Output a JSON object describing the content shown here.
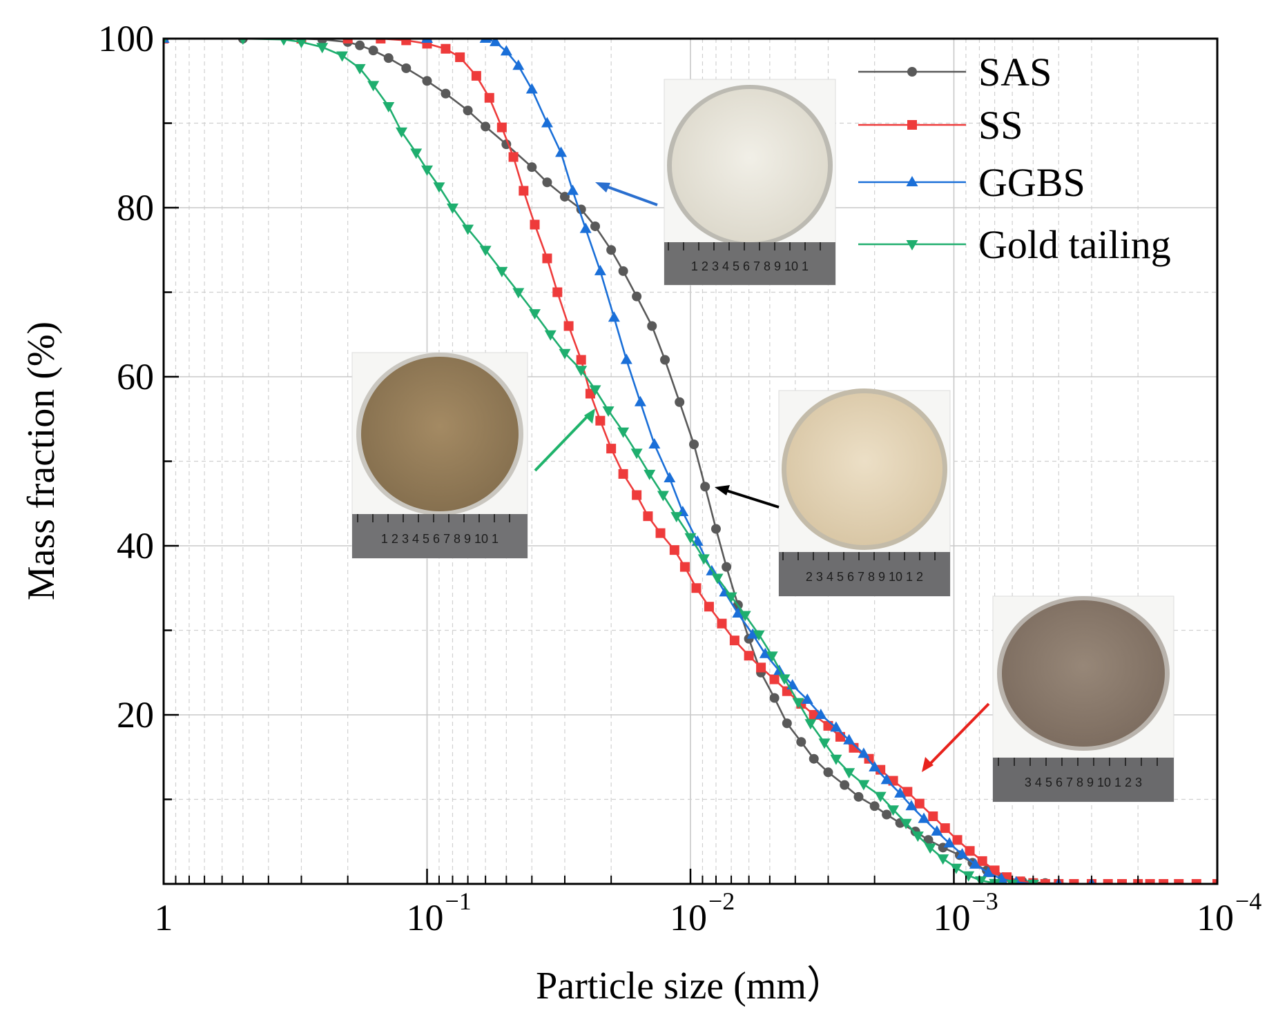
{
  "chart_data": {
    "type": "line",
    "title": "",
    "xlabel": "Particle size (mm）",
    "ylabel": "Mass fraction (%)",
    "x_scale": "log",
    "x_reversed": true,
    "xlim": [
      1,
      0.0001
    ],
    "ylim": [
      0,
      100
    ],
    "y_ticks": [
      20,
      40,
      60,
      80,
      100
    ],
    "x_tick_labels": [
      {
        "value": 1,
        "base": "1",
        "exp": ""
      },
      {
        "value": 0.1,
        "base": "10",
        "exp": "−1"
      },
      {
        "value": 0.01,
        "base": "10",
        "exp": "−2"
      },
      {
        "value": 0.001,
        "base": "10",
        "exp": "−3"
      },
      {
        "value": 0.0001,
        "base": "10",
        "exp": "−4"
      }
    ],
    "grid": true,
    "legend_position": "top-right",
    "series": [
      {
        "name": "SAS",
        "color": "#595959",
        "marker": "circle",
        "points": [
          [
            1,
            100
          ],
          [
            0.5,
            100
          ],
          [
            0.3,
            100
          ],
          [
            0.25,
            99.9
          ],
          [
            0.2,
            99.6
          ],
          [
            0.18,
            99.2
          ],
          [
            0.16,
            98.6
          ],
          [
            0.14,
            97.7
          ],
          [
            0.12,
            96.5
          ],
          [
            0.1,
            95
          ],
          [
            0.085,
            93.5
          ],
          [
            0.07,
            91.5
          ],
          [
            0.06,
            89.6
          ],
          [
            0.05,
            87.5
          ],
          [
            0.04,
            84.8
          ],
          [
            0.035,
            83
          ],
          [
            0.03,
            81.3
          ],
          [
            0.026,
            79.8
          ],
          [
            0.023,
            77.8
          ],
          [
            0.02,
            75
          ],
          [
            0.018,
            72.5
          ],
          [
            0.016,
            69.5
          ],
          [
            0.014,
            66
          ],
          [
            0.0125,
            62
          ],
          [
            0.011,
            57
          ],
          [
            0.0097,
            52
          ],
          [
            0.0088,
            47
          ],
          [
            0.008,
            42
          ],
          [
            0.0073,
            37.5
          ],
          [
            0.0066,
            33
          ],
          [
            0.006,
            29
          ],
          [
            0.0054,
            25
          ],
          [
            0.0048,
            22
          ],
          [
            0.0043,
            19
          ],
          [
            0.0038,
            16.8
          ],
          [
            0.0034,
            14.8
          ],
          [
            0.003,
            13.2
          ],
          [
            0.0026,
            11.7
          ],
          [
            0.0023,
            10.3
          ],
          [
            0.002,
            9.2
          ],
          [
            0.0018,
            8.2
          ],
          [
            0.0016,
            7.2
          ],
          [
            0.0014,
            6.2
          ],
          [
            0.00125,
            5.2
          ],
          [
            0.0011,
            4.3
          ],
          [
            0.00095,
            3.4
          ],
          [
            0.00085,
            2.5
          ],
          [
            0.00075,
            1.6
          ],
          [
            0.00065,
            0.8
          ],
          [
            0.00055,
            0.3
          ],
          [
            0.00045,
            0.1
          ],
          [
            0.00035,
            0
          ],
          [
            0.0003,
            0
          ]
        ]
      },
      {
        "name": "SS",
        "color": "#ee3b3b",
        "marker": "square",
        "points": [
          [
            1,
            100
          ],
          [
            0.3,
            100
          ],
          [
            0.2,
            100
          ],
          [
            0.15,
            100
          ],
          [
            0.12,
            99.8
          ],
          [
            0.1,
            99.4
          ],
          [
            0.085,
            98.8
          ],
          [
            0.075,
            97.8
          ],
          [
            0.065,
            95.6
          ],
          [
            0.058,
            93
          ],
          [
            0.052,
            89.5
          ],
          [
            0.047,
            86
          ],
          [
            0.043,
            82
          ],
          [
            0.039,
            78
          ],
          [
            0.035,
            74
          ],
          [
            0.032,
            70
          ],
          [
            0.029,
            66
          ],
          [
            0.026,
            62
          ],
          [
            0.024,
            58
          ],
          [
            0.022,
            54.8
          ],
          [
            0.02,
            51.5
          ],
          [
            0.018,
            48.5
          ],
          [
            0.016,
            46
          ],
          [
            0.0145,
            43.5
          ],
          [
            0.013,
            41.5
          ],
          [
            0.0115,
            39.5
          ],
          [
            0.0105,
            37.5
          ],
          [
            0.0095,
            35
          ],
          [
            0.0085,
            32.8
          ],
          [
            0.0076,
            30.8
          ],
          [
            0.0068,
            28.8
          ],
          [
            0.006,
            27
          ],
          [
            0.0054,
            25.6
          ],
          [
            0.0048,
            24.2
          ],
          [
            0.0043,
            22.8
          ],
          [
            0.0038,
            21.3
          ],
          [
            0.0034,
            20
          ],
          [
            0.003,
            18.7
          ],
          [
            0.0027,
            17.4
          ],
          [
            0.0024,
            16.1
          ],
          [
            0.0021,
            14.8
          ],
          [
            0.0019,
            13.5
          ],
          [
            0.0017,
            12.2
          ],
          [
            0.0015,
            10.9
          ],
          [
            0.00135,
            9.5
          ],
          [
            0.0012,
            8
          ],
          [
            0.00108,
            6.6
          ],
          [
            0.00097,
            5.2
          ],
          [
            0.00087,
            3.9
          ],
          [
            0.00078,
            2.7
          ],
          [
            0.0007,
            1.6
          ],
          [
            0.00063,
            0.8
          ],
          [
            0.00056,
            0.3
          ],
          [
            0.0005,
            0.1
          ],
          [
            0.00045,
            0
          ],
          [
            0.0004,
            0
          ],
          [
            0.00035,
            0
          ],
          [
            0.0003,
            0
          ],
          [
            0.00026,
            0
          ],
          [
            0.00023,
            0
          ],
          [
            0.0002,
            0
          ],
          [
            0.00018,
            0
          ],
          [
            0.00016,
            0
          ],
          [
            0.00014,
            0
          ],
          [
            0.00012,
            0
          ],
          [
            0.0001,
            0
          ]
        ]
      },
      {
        "name": "GGBS",
        "color": "#1a6fd8",
        "marker": "triangle-up",
        "points": [
          [
            1,
            100
          ],
          [
            0.1,
            100
          ],
          [
            0.06,
            100
          ],
          [
            0.055,
            99.6
          ],
          [
            0.05,
            98.5
          ],
          [
            0.045,
            96.8
          ],
          [
            0.04,
            94
          ],
          [
            0.035,
            90
          ],
          [
            0.031,
            86.5
          ],
          [
            0.028,
            82
          ],
          [
            0.025,
            77.5
          ],
          [
            0.022,
            72.5
          ],
          [
            0.0195,
            67
          ],
          [
            0.0175,
            62
          ],
          [
            0.0155,
            57
          ],
          [
            0.0137,
            52
          ],
          [
            0.012,
            48
          ],
          [
            0.0107,
            44
          ],
          [
            0.0094,
            40.5
          ],
          [
            0.0083,
            37
          ],
          [
            0.0074,
            34.5
          ],
          [
            0.0066,
            32
          ],
          [
            0.0058,
            29.5
          ],
          [
            0.0052,
            27.2
          ],
          [
            0.0046,
            25.2
          ],
          [
            0.0041,
            23.5
          ],
          [
            0.0036,
            21.8
          ],
          [
            0.0032,
            20
          ],
          [
            0.0028,
            18.5
          ],
          [
            0.0025,
            17
          ],
          [
            0.0022,
            15.4
          ],
          [
            0.002,
            13.8
          ],
          [
            0.0018,
            12.3
          ],
          [
            0.0016,
            10.7
          ],
          [
            0.00145,
            9.2
          ],
          [
            0.0013,
            7.7
          ],
          [
            0.00116,
            6.2
          ],
          [
            0.00104,
            4.8
          ],
          [
            0.00093,
            3.5
          ],
          [
            0.00083,
            2.3
          ],
          [
            0.00074,
            1.3
          ],
          [
            0.00066,
            0.6
          ],
          [
            0.00058,
            0.2
          ],
          [
            0.0005,
            0
          ],
          [
            0.0004,
            0
          ],
          [
            0.0003,
            0
          ]
        ]
      },
      {
        "name": "Gold tailing",
        "color": "#1eae6e",
        "marker": "triangle-down",
        "points": [
          [
            1,
            100
          ],
          [
            0.5,
            100
          ],
          [
            0.35,
            99.9
          ],
          [
            0.3,
            99.6
          ],
          [
            0.25,
            99
          ],
          [
            0.21,
            98
          ],
          [
            0.18,
            96.5
          ],
          [
            0.16,
            94.5
          ],
          [
            0.14,
            92
          ],
          [
            0.125,
            89
          ],
          [
            0.11,
            86.5
          ],
          [
            0.1,
            84.5
          ],
          [
            0.09,
            82.5
          ],
          [
            0.08,
            80
          ],
          [
            0.07,
            77.5
          ],
          [
            0.06,
            75
          ],
          [
            0.052,
            72.5
          ],
          [
            0.045,
            70
          ],
          [
            0.039,
            67.5
          ],
          [
            0.034,
            65
          ],
          [
            0.03,
            62.8
          ],
          [
            0.026,
            60.8
          ],
          [
            0.023,
            58.5
          ],
          [
            0.0205,
            56
          ],
          [
            0.018,
            53.5
          ],
          [
            0.016,
            51
          ],
          [
            0.0143,
            48.5
          ],
          [
            0.0127,
            46
          ],
          [
            0.0113,
            43.5
          ],
          [
            0.01,
            41
          ],
          [
            0.0089,
            38.5
          ],
          [
            0.0079,
            36.2
          ],
          [
            0.007,
            34
          ],
          [
            0.0062,
            31.8
          ],
          [
            0.0055,
            29.5
          ],
          [
            0.0049,
            27
          ],
          [
            0.0044,
            24.3
          ],
          [
            0.0039,
            21.5
          ],
          [
            0.0035,
            19
          ],
          [
            0.0031,
            16.7
          ],
          [
            0.0028,
            14.8
          ],
          [
            0.0025,
            13.2
          ],
          [
            0.0022,
            11.8
          ],
          [
            0.0019,
            10.4
          ],
          [
            0.0017,
            8.8
          ],
          [
            0.00152,
            7.2
          ],
          [
            0.00137,
            5.7
          ],
          [
            0.00123,
            4.3
          ],
          [
            0.0011,
            3
          ],
          [
            0.00098,
            1.9
          ],
          [
            0.00088,
            1
          ],
          [
            0.00079,
            0.4
          ],
          [
            0.0007,
            0.1
          ],
          [
            0.0006,
            0
          ],
          [
            0.0005,
            0
          ]
        ]
      }
    ]
  },
  "photos": [
    {
      "name": "ggbs-photo",
      "kind": "fine white powder",
      "dish_color": "#e9e6dc",
      "label_series": "GGBS",
      "ruler_digits": "1 2 3 4 5 6 7 8 9 10 1"
    },
    {
      "name": "gold-tailing-photo",
      "kind": "coarse brown granular",
      "dish_color": "#9a7f5a",
      "label_series": "Gold tailing",
      "ruler_digits": "1 2 3 4 5 6 7 8 9 10 1"
    },
    {
      "name": "sas-photo",
      "kind": "beige powder",
      "dish_color": "#e5d5b8",
      "label_series": "SAS",
      "ruler_digits": "2 3 4 5 6 7 8 9 10 1 2"
    },
    {
      "name": "ss-photo",
      "kind": "brown-grey powder",
      "dish_color": "#8e7e70",
      "label_series": "SS",
      "ruler_digits": "3 4 5 6 7 8 9 10 1 2 3"
    }
  ],
  "annotations": [
    {
      "name": "ggbs-arrow",
      "color": "#2a6fcf"
    },
    {
      "name": "gold-tailing-arrow",
      "color": "#1fb36b"
    },
    {
      "name": "sas-arrow",
      "color": "#000000"
    },
    {
      "name": "ss-arrow",
      "color": "#e8221c"
    }
  ]
}
